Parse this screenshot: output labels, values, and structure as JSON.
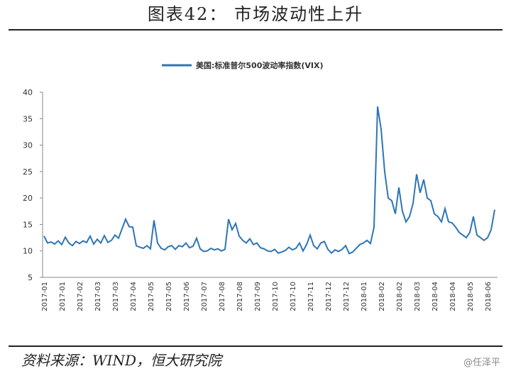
{
  "header": {
    "title": "图表42：        市场波动性上升"
  },
  "chart_data": {
    "type": "line",
    "categories": [
      "2017-01",
      null,
      null,
      null,
      null,
      "2017-01",
      null,
      null,
      null,
      null,
      "2017-02",
      null,
      null,
      null,
      null,
      "2017-03",
      null,
      null,
      null,
      null,
      "2017-03",
      null,
      null,
      null,
      null,
      "2017-04",
      null,
      null,
      null,
      null,
      "2017-05",
      null,
      null,
      null,
      null,
      "2017-05",
      null,
      null,
      null,
      null,
      "2017-06",
      null,
      null,
      null,
      null,
      "2017-07",
      null,
      null,
      null,
      null,
      "2017-08",
      null,
      null,
      null,
      null,
      "2017-08",
      null,
      null,
      null,
      null,
      "2017-09",
      null,
      null,
      null,
      null,
      "2017-10",
      null,
      null,
      null,
      null,
      "2017-10",
      null,
      null,
      null,
      null,
      "2017-11",
      null,
      null,
      null,
      null,
      "2017-12",
      null,
      null,
      null,
      null,
      "2017-12",
      null,
      null,
      null,
      null,
      "2018-01",
      null,
      null,
      null,
      null,
      "2018-02",
      null,
      null,
      null,
      null,
      "2018-02",
      null,
      null,
      null,
      null,
      "2018-03",
      null,
      null,
      null,
      null,
      "2018-04",
      null,
      null,
      null,
      null,
      "2018-04",
      null,
      null,
      null,
      null,
      "2018-05",
      null,
      null,
      null,
      null,
      "2018-06",
      null,
      null
    ],
    "series": [
      {
        "name": "美国:标准普尔500波动率指数(VIX)",
        "color": "#2e75b6",
        "values": [
          12.8,
          11.5,
          11.7,
          11.3,
          11.9,
          11.2,
          12.6,
          11.5,
          11.0,
          11.8,
          11.4,
          11.9,
          11.6,
          12.8,
          11.3,
          12.2,
          11.5,
          12.9,
          11.6,
          12.0,
          13.0,
          12.4,
          14.2,
          16.0,
          14.6,
          14.5,
          11.0,
          10.7,
          10.5,
          11.0,
          10.4,
          15.8,
          11.5,
          10.5,
          10.2,
          10.8,
          11.0,
          10.3,
          11.0,
          10.8,
          11.5,
          10.6,
          10.9,
          12.4,
          10.4,
          9.9,
          10.0,
          10.5,
          10.2,
          10.4,
          10.0,
          10.3,
          16.0,
          14.0,
          15.2,
          12.8,
          12.0,
          11.5,
          12.3,
          11.2,
          11.5,
          10.6,
          10.4,
          10.0,
          9.9,
          10.3,
          9.6,
          9.8,
          10.1,
          10.7,
          10.2,
          10.5,
          11.5,
          10.0,
          11.2,
          13.0,
          11.0,
          10.4,
          11.5,
          11.8,
          10.3,
          9.6,
          10.2,
          9.9,
          10.3,
          11.0,
          9.5,
          9.8,
          10.5,
          11.2,
          11.5,
          12.0,
          11.4,
          14.5,
          37.3,
          33.0,
          25.0,
          20.0,
          19.5,
          17.0,
          22.0,
          17.5,
          15.5,
          16.5,
          19.0,
          24.5,
          21.0,
          23.5,
          20.0,
          19.5,
          17.0,
          16.5,
          15.5,
          18.0,
          15.5,
          15.3,
          14.5,
          13.5,
          13.0,
          12.5,
          13.5,
          16.5,
          13.0,
          12.5,
          12.0,
          12.5,
          14.0,
          17.8
        ]
      }
    ],
    "ylim": [
      5,
      40
    ],
    "yticks": [
      5,
      10,
      15,
      20,
      25,
      30,
      35,
      40
    ],
    "grid": false,
    "legend": "top"
  },
  "footer": {
    "source": "资料来源：WIND，恒大研究院",
    "watermark": "@任泽平"
  }
}
